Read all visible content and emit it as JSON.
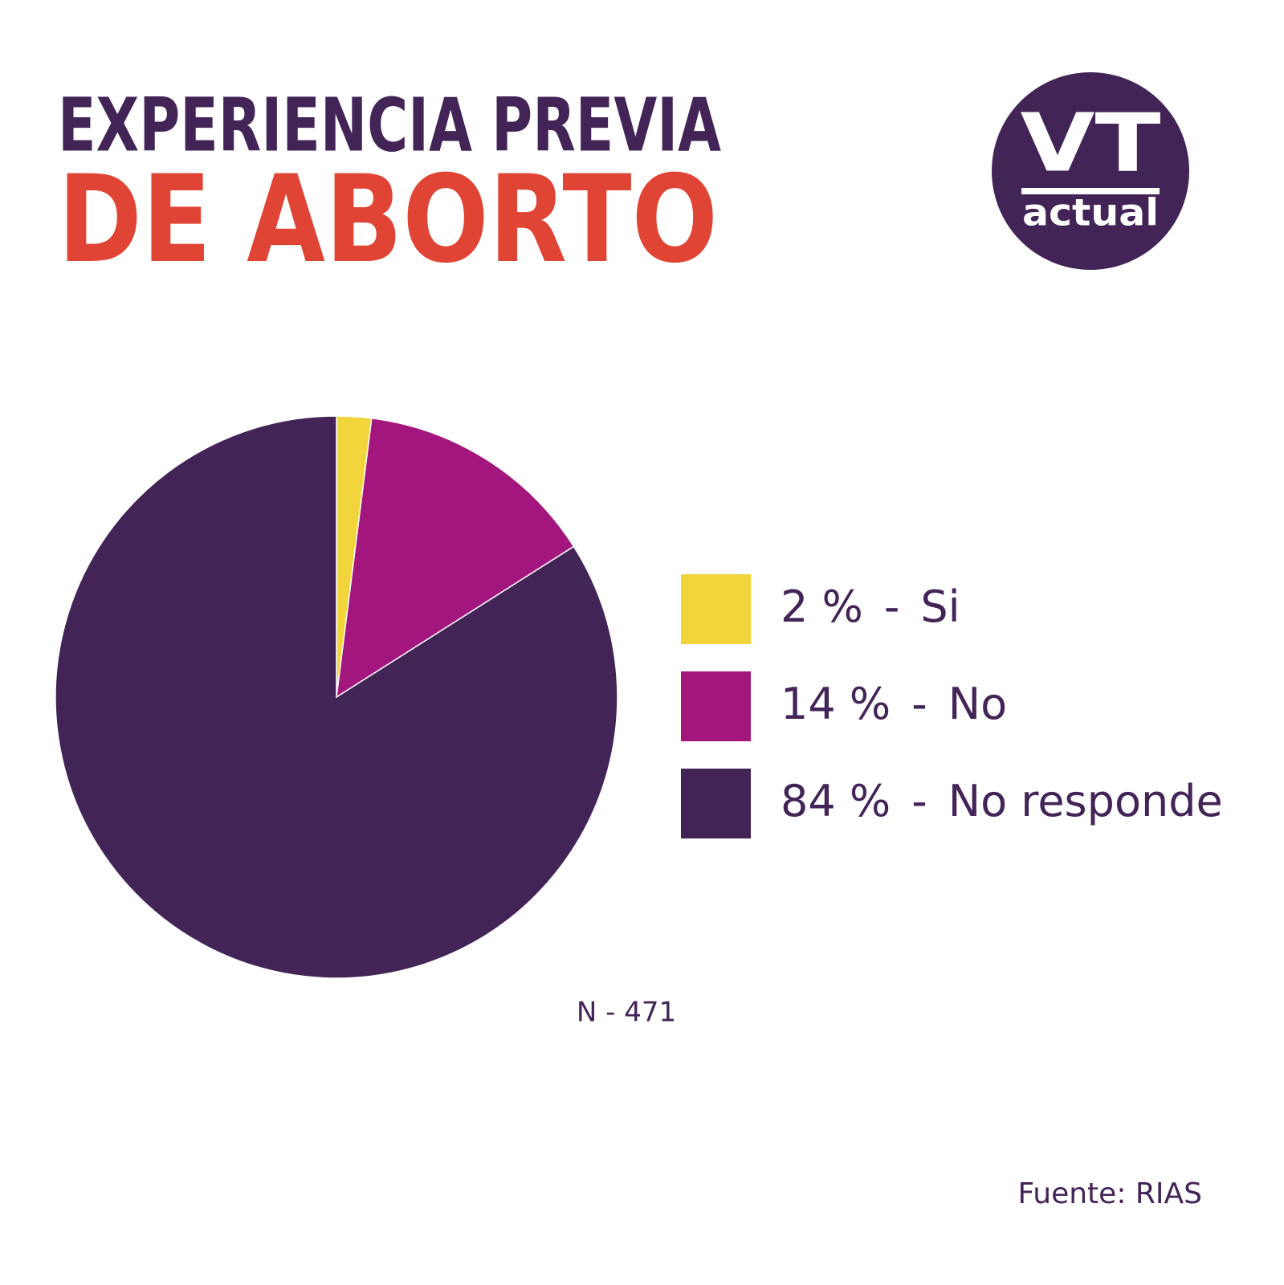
{
  "chart_data": {
    "type": "pie",
    "title": "EXPERIENCIA PREVIA",
    "subtitle": "DE ABORTO",
    "logo": {
      "main": "VT",
      "sub": "actual"
    },
    "categories": [
      "Si",
      "No",
      "No responde"
    ],
    "values": [
      2,
      14,
      84
    ],
    "value_labels": [
      "2 %",
      "14 %",
      "84 %"
    ],
    "legend_separator": "-",
    "colors": [
      "#f2d43b",
      "#a3167d",
      "#432457"
    ],
    "note": "N - 471",
    "source": "Fuente:  RIAS"
  }
}
